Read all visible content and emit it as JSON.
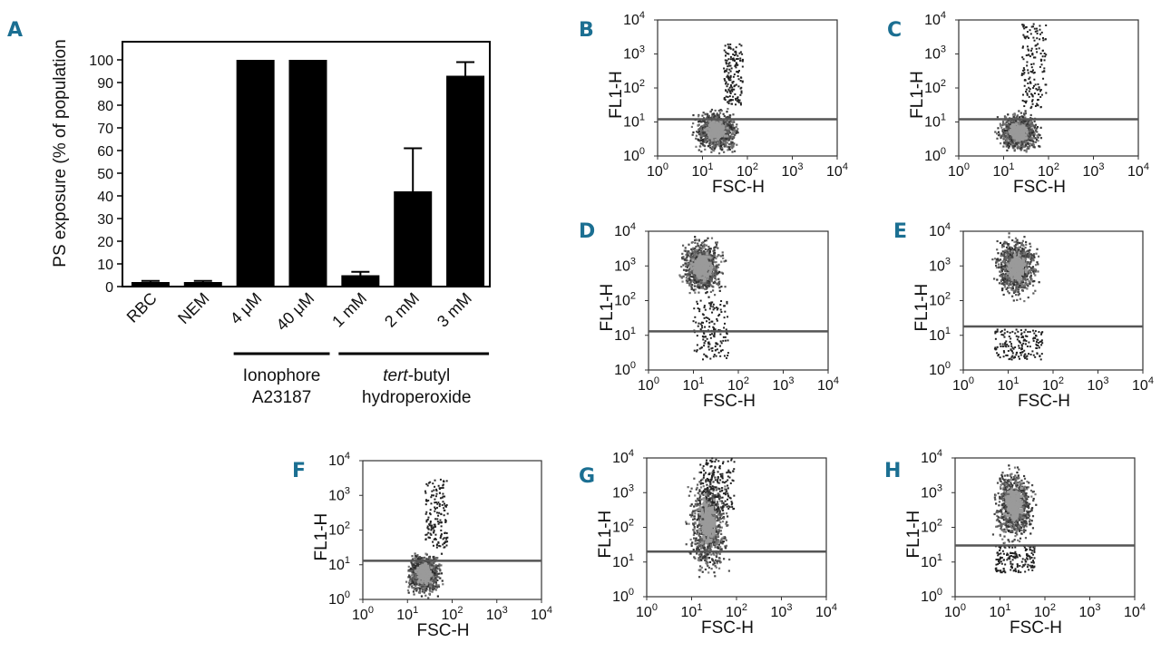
{
  "panel_a": {
    "letter": "A",
    "groups": [
      {
        "line1": "Ionophore",
        "line2": "A23187",
        "italic_prefix": ""
      },
      {
        "line1": "-butyl",
        "line2": "hydroperoxide",
        "italic_prefix": "tert"
      }
    ]
  },
  "chart_data": [
    {
      "panel": "A",
      "type": "bar",
      "title": "",
      "xlabel": "",
      "ylabel": "PS exposure (% of population",
      "categories": [
        "RBC",
        "NEM",
        "4 μM",
        "40 μM",
        "1 mM",
        "2 mM",
        "3 mM"
      ],
      "values": [
        2,
        2,
        100,
        100,
        5,
        42,
        93
      ],
      "error": [
        0.5,
        0.5,
        0,
        0,
        1.5,
        19,
        6
      ],
      "yticks": [
        0,
        10,
        20,
        30,
        40,
        50,
        60,
        70,
        80,
        90,
        100
      ],
      "ylim": [
        0,
        108
      ],
      "grid": false,
      "bar_color": "#000000"
    },
    {
      "panel": "B",
      "type": "scatter",
      "xlabel": "FSC-H",
      "ylabel": "FL1-H",
      "xscale": "log",
      "yscale": "log",
      "xlim": [
        1,
        10000
      ],
      "ylim": [
        1,
        10000
      ],
      "xticks": [
        "10",
        "10",
        "10",
        "10",
        "10"
      ],
      "xtick_exps": [
        "0",
        "1",
        "2",
        "3",
        "4"
      ],
      "yticks": [
        "10",
        "10",
        "10",
        "10",
        "10"
      ],
      "ytick_exps": [
        "0",
        "1",
        "2",
        "3",
        "4"
      ],
      "gate_y": 12,
      "cloud": {
        "x_range": [
          5,
          80
        ],
        "y_range": [
          1,
          30
        ],
        "tail_x": [
          30,
          80
        ],
        "tail_y": [
          30,
          2000
        ]
      }
    },
    {
      "panel": "C",
      "type": "scatter",
      "xlabel": "FSC-H",
      "ylabel": "FL1-H",
      "xscale": "log",
      "yscale": "log",
      "xlim": [
        1,
        10000
      ],
      "ylim": [
        1,
        10000
      ],
      "xticks": [
        "10",
        "10",
        "10",
        "10",
        "10"
      ],
      "xtick_exps": [
        "0",
        "1",
        "2",
        "3",
        "4"
      ],
      "yticks": [
        "10",
        "10",
        "10",
        "10",
        "10"
      ],
      "ytick_exps": [
        "0",
        "1",
        "2",
        "3",
        "4"
      ],
      "gate_y": 12,
      "cloud": {
        "x_range": [
          6,
          80
        ],
        "y_range": [
          1,
          25
        ],
        "tail_x": [
          25,
          90
        ],
        "tail_y": [
          25,
          8000
        ]
      }
    },
    {
      "panel": "D",
      "type": "scatter",
      "xlabel": "FSC-H",
      "ylabel": "FL1-H",
      "xscale": "log",
      "yscale": "log",
      "xlim": [
        1,
        10000
      ],
      "ylim": [
        1,
        10000
      ],
      "xticks": [
        "10",
        "10",
        "10",
        "10",
        "10"
      ],
      "xtick_exps": [
        "0",
        "1",
        "2",
        "3",
        "4"
      ],
      "yticks": [
        "10",
        "10",
        "10",
        "10",
        "10"
      ],
      "ytick_exps": [
        "0",
        "1",
        "2",
        "3",
        "4"
      ],
      "gate_y": 13,
      "cloud": {
        "x_range": [
          4,
          60
        ],
        "y_range": [
          100,
          9500
        ],
        "tail_x": [
          10,
          60
        ],
        "tail_y": [
          2,
          100
        ]
      }
    },
    {
      "panel": "E",
      "type": "scatter",
      "xlabel": "FSC-H",
      "ylabel": "FL1-H",
      "xscale": "log",
      "yscale": "log",
      "xlim": [
        1,
        10000
      ],
      "ylim": [
        1,
        10000
      ],
      "xticks": [
        "10",
        "10",
        "10",
        "10",
        "10"
      ],
      "xtick_exps": [
        "0",
        "1",
        "2",
        "3",
        "4"
      ],
      "yticks": [
        "10",
        "10",
        "10",
        "10",
        "10"
      ],
      "ytick_exps": [
        "0",
        "1",
        "2",
        "3",
        "4"
      ],
      "gate_y": 18,
      "cloud": {
        "x_range": [
          4,
          60
        ],
        "y_range": [
          80,
          9500
        ],
        "tail_x": [
          5,
          60
        ],
        "tail_y": [
          2,
          15
        ]
      }
    },
    {
      "panel": "F",
      "type": "scatter",
      "xlabel": "FSC-H",
      "ylabel": "FL1-H",
      "xscale": "log",
      "yscale": "log",
      "xlim": [
        1,
        10000
      ],
      "ylim": [
        1,
        10000
      ],
      "xticks": [
        "10",
        "10",
        "10",
        "10",
        "10"
      ],
      "xtick_exps": [
        "0",
        "1",
        "2",
        "3",
        "4"
      ],
      "yticks": [
        "10",
        "10",
        "10",
        "10",
        "10"
      ],
      "ytick_exps": [
        "0",
        "1",
        "2",
        "3",
        "4"
      ],
      "gate_y": 13,
      "cloud": {
        "x_range": [
          8,
          70
        ],
        "y_range": [
          1,
          30
        ],
        "tail_x": [
          25,
          80
        ],
        "tail_y": [
          30,
          3000
        ]
      }
    },
    {
      "panel": "G",
      "type": "scatter",
      "xlabel": "FSC-H",
      "ylabel": "FL1-H",
      "xscale": "log",
      "yscale": "log",
      "xlim": [
        1,
        10000
      ],
      "ylim": [
        1,
        10000
      ],
      "xticks": [
        "10",
        "10",
        "10",
        "10",
        "10"
      ],
      "xtick_exps": [
        "0",
        "1",
        "2",
        "3",
        "4"
      ],
      "yticks": [
        "10",
        "10",
        "10",
        "10",
        "10"
      ],
      "ytick_exps": [
        "0",
        "1",
        "2",
        "3",
        "4"
      ],
      "gate_y": 20,
      "cloud": {
        "x_range": [
          7,
          80
        ],
        "y_range": [
          2,
          9800
        ],
        "tail_x": [
          15,
          90
        ],
        "tail_y": [
          300,
          9800
        ]
      }
    },
    {
      "panel": "H",
      "type": "scatter",
      "xlabel": "FSC-H",
      "ylabel": "FL1-H",
      "xscale": "log",
      "yscale": "log",
      "xlim": [
        1,
        10000
      ],
      "ylim": [
        1,
        10000
      ],
      "xticks": [
        "10",
        "10",
        "10",
        "10",
        "10"
      ],
      "xtick_exps": [
        "0",
        "1",
        "2",
        "3",
        "4"
      ],
      "yticks": [
        "10",
        "10",
        "10",
        "10",
        "10"
      ],
      "ytick_exps": [
        "0",
        "1",
        "2",
        "3",
        "4"
      ],
      "gate_y": 30,
      "cloud": {
        "x_range": [
          6,
          70
        ],
        "y_range": [
          20,
          9800
        ],
        "tail_x": [
          8,
          60
        ],
        "tail_y": [
          5,
          30
        ]
      }
    }
  ]
}
